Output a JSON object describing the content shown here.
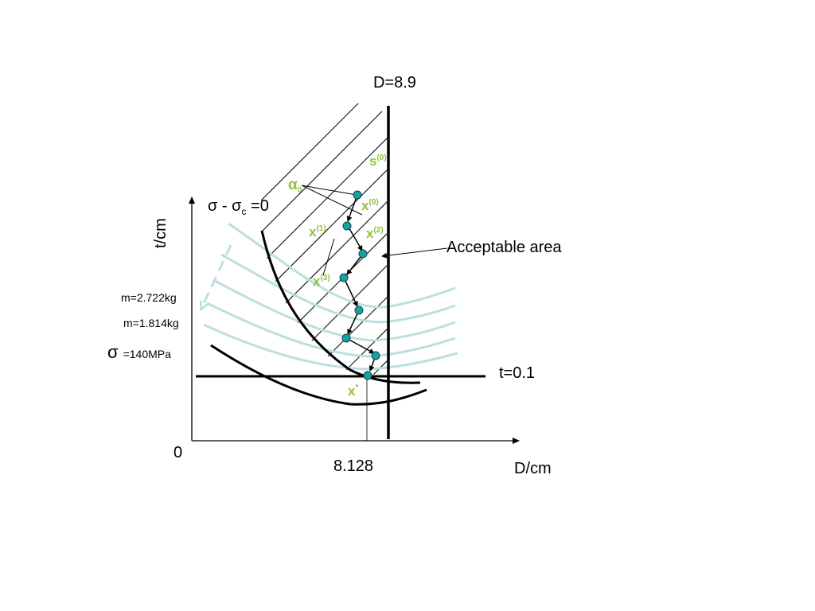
{
  "labels": {
    "boundary_top": "D=8.9",
    "y_axis": "t/cm",
    "x_axis": "D/cm",
    "origin": "0",
    "optimum_x": "8.128",
    "t_line": "t=0.1",
    "acceptable_area": "Acceptable area",
    "constraint_sigma": "σ",
    "constraint_minus": " - σ",
    "constraint_sub": "c",
    "constraint_eq": " =0",
    "mass_1": "m=2.722kg",
    "mass_2": "m=1.814kg",
    "sigma_symbol": "σ",
    "sigma_value": "=140MPa"
  },
  "points": {
    "s0_base": "s",
    "s0_sup": "(0)",
    "alpha_base": "α",
    "alpha_sub": "0",
    "x0_base": "x",
    "x0_sup": "(0)",
    "x1_base": "x",
    "x1_sup": "(1)",
    "x2_base": "x",
    "x2_sup": "(2)",
    "x3_base": "x",
    "x3_sup": "(3)",
    "xstar_base": "x",
    "xstar_sup": "*"
  },
  "colors": {
    "axis": "#000000",
    "contour": "#bcdfe2",
    "label_accent": "#8fc23a",
    "point_fill": "#1aa0a0",
    "point_stroke": "#0a4a4a"
  }
}
